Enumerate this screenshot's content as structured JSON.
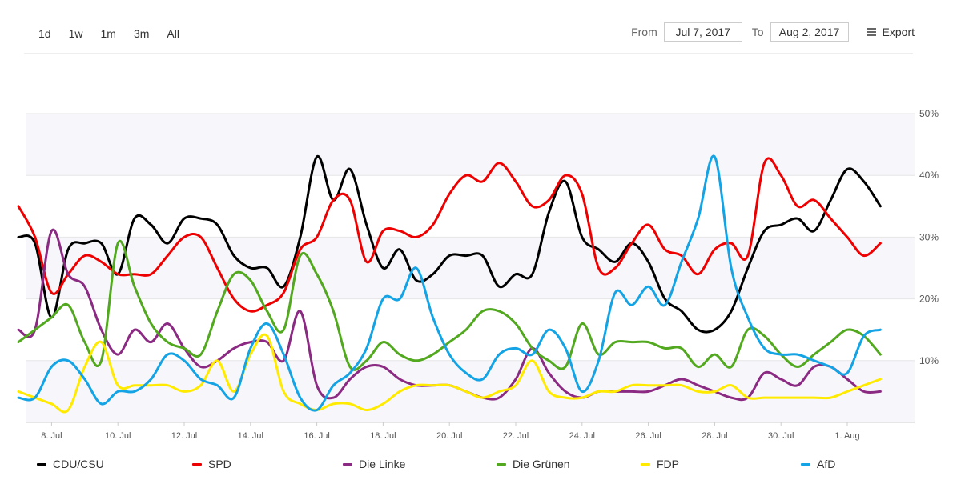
{
  "toolbar": {
    "ranges": [
      "1d",
      "1w",
      "1m",
      "3m",
      "All"
    ],
    "from_label": "From",
    "from_value": "Jul 7, 2017",
    "to_label": "To",
    "to_value": "Aug 2, 2017",
    "export_label": "Export"
  },
  "chart_data": {
    "type": "line",
    "title": "",
    "xlabel": "",
    "ylabel": "",
    "x_start": "2017-07-07",
    "x_step_days": 0.5,
    "x": [
      "Jul 7",
      "Jul 7.5",
      "Jul 8",
      "Jul 8.5",
      "Jul 9",
      "Jul 9.5",
      "Jul 10",
      "Jul 10.5",
      "Jul 11",
      "Jul 11.5",
      "Jul 12",
      "Jul 12.5",
      "Jul 13",
      "Jul 13.5",
      "Jul 14",
      "Jul 14.5",
      "Jul 15",
      "Jul 15.5",
      "Jul 16",
      "Jul 16.5",
      "Jul 17",
      "Jul 17.5",
      "Jul 18",
      "Jul 18.5",
      "Jul 19",
      "Jul 19.5",
      "Jul 20",
      "Jul 20.5",
      "Jul 21",
      "Jul 21.5",
      "Jul 22",
      "Jul 22.5",
      "Jul 23",
      "Jul 23.5",
      "Jul 24",
      "Jul 24.5",
      "Jul 25",
      "Jul 25.5",
      "Jul 26",
      "Jul 26.5",
      "Jul 27",
      "Jul 27.5",
      "Jul 28",
      "Jul 28.5",
      "Jul 29",
      "Jul 29.5",
      "Jul 30",
      "Jul 30.5",
      "Jul 31",
      "Jul 31.5",
      "Aug 1",
      "Aug 1.5",
      "Aug 2"
    ],
    "x_ticks": [
      "8. Jul",
      "10. Jul",
      "12. Jul",
      "14. Jul",
      "16. Jul",
      "18. Jul",
      "20. Jul",
      "22. Jul",
      "24. Jul",
      "26. Jul",
      "28. Jul",
      "30. Jul",
      "1. Aug"
    ],
    "y_ticks": [
      "10%",
      "20%",
      "30%",
      "40%",
      "50%"
    ],
    "ylim": [
      0,
      50
    ],
    "grid": true,
    "legend_position": "bottom",
    "series": [
      {
        "name": "CDU/CSU",
        "color": "#000000",
        "values": [
          30,
          29,
          17,
          28,
          29,
          29,
          24,
          33,
          32,
          29,
          33,
          33,
          32,
          27,
          25,
          25,
          22,
          30,
          43,
          36,
          41,
          32,
          25,
          28,
          23,
          24,
          27,
          27,
          27,
          22,
          24,
          24,
          34,
          39,
          30,
          28,
          26,
          29,
          26,
          20,
          18,
          15,
          15,
          18,
          25,
          31,
          32,
          33,
          31,
          36,
          41,
          39,
          35
        ]
      },
      {
        "name": "SPD",
        "color": "#ee0000",
        "values": [
          35,
          30,
          21,
          24,
          27,
          26,
          24,
          24,
          24,
          27,
          30,
          30,
          25,
          20,
          18,
          19,
          21,
          28,
          30,
          36,
          36,
          26,
          31,
          31,
          30,
          32,
          37,
          40,
          39,
          42,
          39,
          35,
          36,
          40,
          37,
          25,
          25,
          29,
          32,
          28,
          27,
          24,
          28,
          29,
          27,
          42,
          40,
          35,
          36,
          33,
          30,
          27,
          29
        ]
      },
      {
        "name": "Die Linke",
        "color": "#8b2a82",
        "values": [
          15,
          15,
          31,
          24,
          22,
          15,
          11,
          15,
          13,
          16,
          12,
          9,
          10,
          12,
          13,
          13,
          10,
          18,
          6,
          4,
          7,
          9,
          9,
          7,
          6,
          6,
          6,
          5,
          4,
          4,
          7,
          12,
          8,
          5,
          4,
          5,
          5,
          5,
          5,
          6,
          7,
          6,
          5,
          4,
          4,
          8,
          7,
          6,
          9,
          9,
          7,
          5,
          5
        ]
      },
      {
        "name": "Die Grünen",
        "color": "#52a81f",
        "values": [
          13,
          15,
          17,
          19,
          13,
          10,
          29,
          22,
          16,
          13,
          12,
          11,
          18,
          24,
          23,
          18,
          15,
          27,
          24,
          18,
          9,
          10,
          13,
          11,
          10,
          11,
          13,
          15,
          18,
          18,
          16,
          12,
          10,
          9,
          16,
          11,
          13,
          13,
          13,
          12,
          12,
          9,
          11,
          9,
          15,
          14,
          11,
          9,
          11,
          13,
          15,
          14,
          11
        ]
      },
      {
        "name": "FDP",
        "color": "#ffea00",
        "values": [
          5,
          4,
          3,
          2,
          9,
          13,
          6,
          6,
          6,
          6,
          5,
          6,
          10,
          5,
          11,
          14,
          5,
          3,
          2,
          3,
          3,
          2,
          3,
          5,
          6,
          6,
          6,
          5,
          4,
          5,
          6,
          10,
          5,
          4,
          4,
          5,
          5,
          6,
          6,
          6,
          6,
          5,
          5,
          6,
          4,
          4,
          4,
          4,
          4,
          4,
          5,
          6,
          7
        ]
      },
      {
        "name": "AfD",
        "color": "#14a3e4",
        "values": [
          4,
          4,
          9,
          10,
          7,
          3,
          5,
          5,
          7,
          11,
          10,
          7,
          6,
          4,
          12,
          16,
          11,
          4,
          2,
          6,
          8,
          12,
          20,
          20,
          25,
          17,
          11,
          8,
          7,
          11,
          12,
          11,
          15,
          12,
          5,
          10,
          21,
          19,
          22,
          19,
          26,
          33,
          43,
          25,
          17,
          12,
          11,
          11,
          10,
          9,
          8,
          14,
          15
        ]
      }
    ]
  }
}
